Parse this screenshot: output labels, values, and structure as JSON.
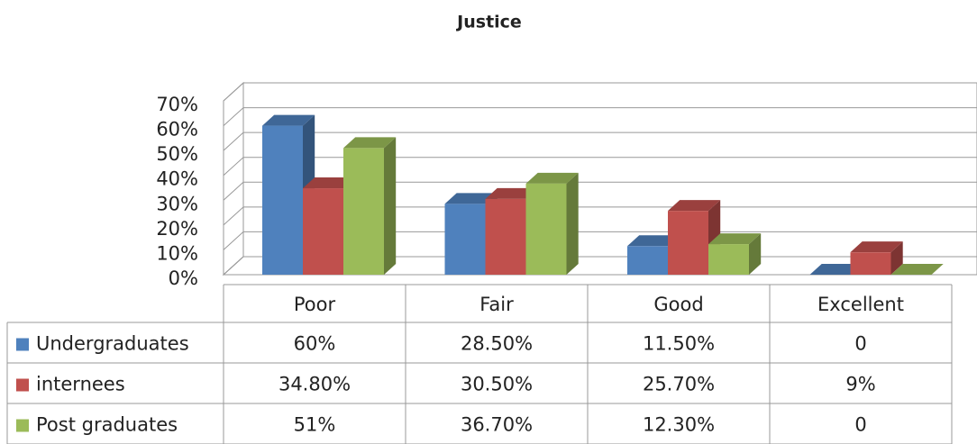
{
  "chart_data": {
    "type": "bar3d",
    "title": "Justice",
    "categories": [
      "Poor",
      "Fair",
      "Good",
      "Excellent"
    ],
    "series": [
      {
        "name": "Undergraduates",
        "color": "#4f81bd",
        "values": [
          60,
          28.5,
          11.5,
          0
        ],
        "value_labels": [
          "60%",
          "28.50%",
          "11.50%",
          "0"
        ]
      },
      {
        "name": "internees",
        "color": "#c0504d",
        "values": [
          34.8,
          30.5,
          25.7,
          9
        ],
        "value_labels": [
          "34.80%",
          "30.50%",
          "25.70%",
          "9%"
        ]
      },
      {
        "name": "Post graduates",
        "color": "#9bbb59",
        "values": [
          51,
          36.7,
          12.3,
          0
        ],
        "value_labels": [
          "51%",
          "36.70%",
          "12.30%",
          "0"
        ]
      }
    ],
    "ylim": [
      0,
      70
    ],
    "yticks": [
      {
        "value": 0,
        "label": "0%"
      },
      {
        "value": 10,
        "label": "10%"
      },
      {
        "value": 20,
        "label": "20%"
      },
      {
        "value": 30,
        "label": "30%"
      },
      {
        "value": 40,
        "label": "40%"
      },
      {
        "value": 50,
        "label": "50%"
      },
      {
        "value": 60,
        "label": "60%"
      },
      {
        "value": 70,
        "label": "70%"
      }
    ],
    "grid": true
  }
}
